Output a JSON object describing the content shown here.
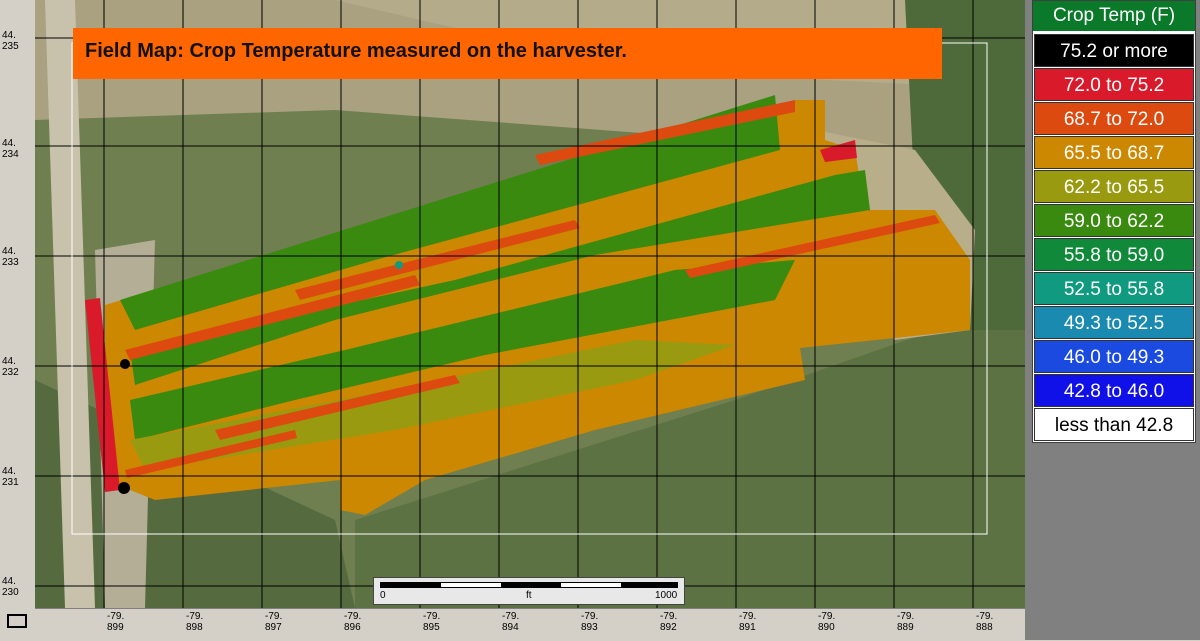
{
  "title": "Field Map: Crop Temperature measured on the harvester.",
  "legend": {
    "title": "Crop Temp (F)",
    "items": [
      {
        "label": "75.2 or more",
        "bg": "#000000",
        "fg": "#ffffff"
      },
      {
        "label": "72.0  to  75.2",
        "bg": "#d81a2a",
        "fg": "#ffffff"
      },
      {
        "label": "68.7  to  72.0",
        "bg": "#dd4a10",
        "fg": "#ffffff"
      },
      {
        "label": "65.5  to  68.7",
        "bg": "#cc8800",
        "fg": "#ffffff"
      },
      {
        "label": "62.2  to  65.5",
        "bg": "#9a9a10",
        "fg": "#ffffff"
      },
      {
        "label": "59.0  to  62.2",
        "bg": "#3a8a10",
        "fg": "#ffffff"
      },
      {
        "label": "55.8  to  59.0",
        "bg": "#108a3a",
        "fg": "#ffffff"
      },
      {
        "label": "52.5  to  55.8",
        "bg": "#109a80",
        "fg": "#ffffff"
      },
      {
        "label": "49.3  to  52.5",
        "bg": "#1a8ab0",
        "fg": "#ffffff"
      },
      {
        "label": "46.0  to  49.3",
        "bg": "#1a4ae0",
        "fg": "#ffffff"
      },
      {
        "label": "42.8  to  46.0",
        "bg": "#1010e8",
        "fg": "#ffffff"
      },
      {
        "label": "less than 42.8",
        "bg": "#ffffff",
        "fg": "#000000"
      }
    ]
  },
  "lat_labels": [
    {
      "line1": "44.",
      "line2": "235"
    },
    {
      "line1": "44.",
      "line2": "234"
    },
    {
      "line1": "44.",
      "line2": "233"
    },
    {
      "line1": "44.",
      "line2": "232"
    },
    {
      "line1": "44.",
      "line2": "231"
    },
    {
      "line1": "44.",
      "line2": "230"
    }
  ],
  "lon_labels": [
    {
      "line1": "-79.",
      "line2": "899"
    },
    {
      "line1": "-79.",
      "line2": "898"
    },
    {
      "line1": "-79.",
      "line2": "897"
    },
    {
      "line1": "-79.",
      "line2": "896"
    },
    {
      "line1": "-79.",
      "line2": "895"
    },
    {
      "line1": "-79.",
      "line2": "894"
    },
    {
      "line1": "-79.",
      "line2": "893"
    },
    {
      "line1": "-79.",
      "line2": "892"
    },
    {
      "line1": "-79.",
      "line2": "891"
    },
    {
      "line1": "-79.",
      "line2": "890"
    },
    {
      "line1": "-79.",
      "line2": "889"
    },
    {
      "line1": "-79.",
      "line2": "888"
    }
  ],
  "scalebar": {
    "start": "0",
    "unit": "ft",
    "end": "1000"
  }
}
